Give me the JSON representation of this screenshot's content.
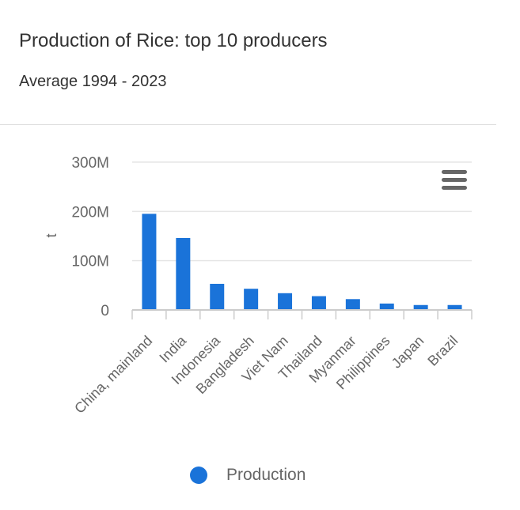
{
  "header": {
    "title": "Production of Rice: top 10 producers",
    "subtitle": "Average 1994 - 2023"
  },
  "menu": {
    "icon": "hamburger-menu-icon"
  },
  "legend": {
    "label": "Production"
  },
  "colors": {
    "bar": "#1a73d9",
    "grid": "#e6e6e6",
    "axis": "#cccccc",
    "text": "#666666"
  },
  "chart_data": {
    "type": "bar",
    "title": "Production of Rice: top 10 producers",
    "subtitle": "Average 1994 - 2023",
    "ylabel": "t",
    "xlabel": "",
    "ylim": [
      0,
      300000000
    ],
    "yticks": [
      0,
      100000000,
      200000000,
      300000000
    ],
    "ytick_labels": [
      "0",
      "100M",
      "200M",
      "300M"
    ],
    "grid": true,
    "legend_position": "bottom-center",
    "categories": [
      "China, mainland",
      "India",
      "Indonesia",
      "Bangladesh",
      "Viet Nam",
      "Thailand",
      "Myanmar",
      "Philippines",
      "Japan",
      "Brazil"
    ],
    "series": [
      {
        "name": "Production",
        "values": [
          195000000,
          146000000,
          53000000,
          43000000,
          34000000,
          28000000,
          22000000,
          13000000,
          10000000,
          10000000
        ]
      }
    ]
  }
}
